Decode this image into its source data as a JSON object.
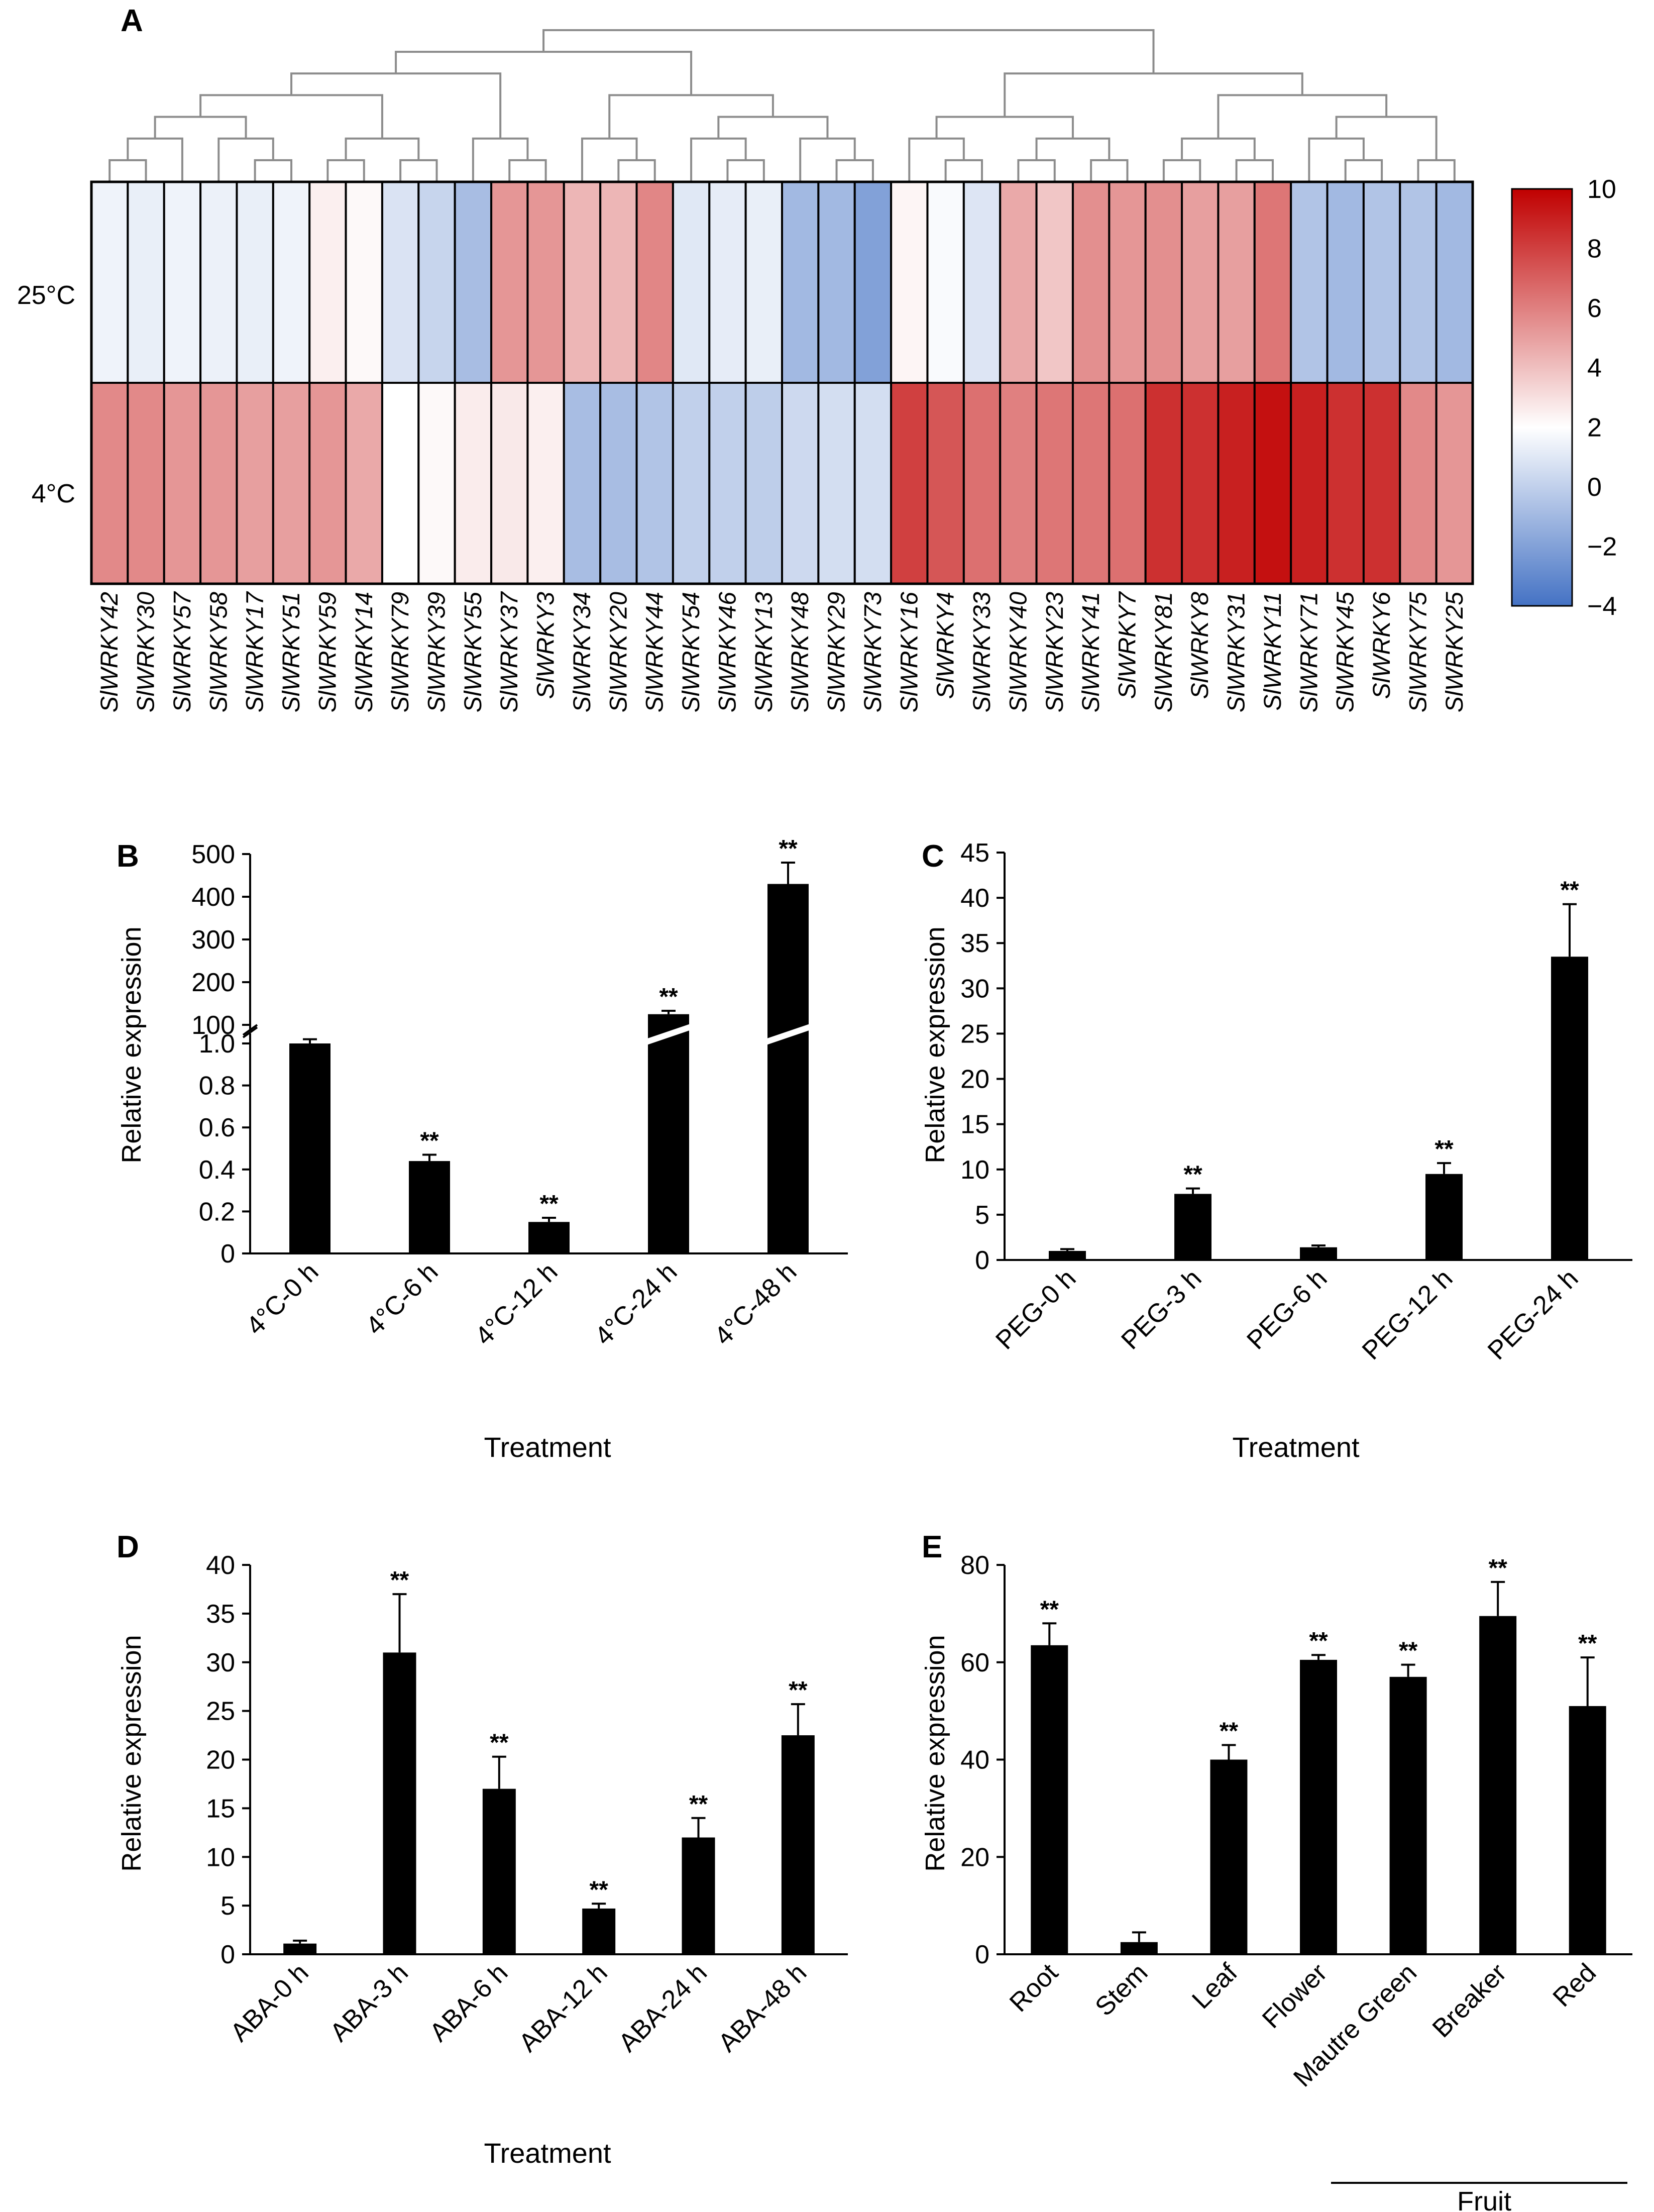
{
  "chart_data": [
    {
      "panel": "A",
      "type": "heatmap",
      "rows": [
        "25°C",
        "4°C"
      ],
      "columns": [
        "SlWRKY42",
        "SlWRKY30",
        "SlWRKY57",
        "SlWRKY58",
        "SlWRKY17",
        "SlWRKY51",
        "SlWRKY59",
        "SlWRKY14",
        "SlWRKY79",
        "SlWRKY39",
        "SlWRKY55",
        "SlWRKY37",
        "SlWRKY3",
        "SlWRKY34",
        "SlWRKY20",
        "SlWRKY44",
        "SlWRKY54",
        "SlWRKY46",
        "SlWRKY13",
        "SlWRKY48",
        "SlWRKY29",
        "SlWRKY73",
        "SlWRKY16",
        "SlWRKY4",
        "SlWRKY33",
        "SlWRKY40",
        "SlWRKY23",
        "SlWRKY41",
        "SlWRKY7",
        "SlWRKY81",
        "SlWRKY8",
        "SlWRKY31",
        "SlWRKY11",
        "SlWRKY71",
        "SlWRKY45",
        "SlWRKY6",
        "SlWRKY75",
        "SlWRKY25"
      ],
      "values": [
        [
          1.5,
          1.3,
          1.5,
          1.4,
          1.3,
          1.5,
          2.5,
          2.2,
          0.8,
          0.2,
          -0.8,
          5.3,
          5.3,
          4.3,
          4.3,
          5.8,
          1.0,
          1.2,
          1.3,
          -1.0,
          -1.0,
          -2.0,
          2.3,
          1.8,
          0.9,
          4.7,
          3.8,
          5.5,
          5.3,
          5.5,
          5.0,
          5.0,
          6.3,
          -0.5,
          -1.0,
          -0.5,
          -0.5,
          -1.0
        ],
        [
          5.7,
          5.7,
          5.3,
          5.3,
          5.0,
          5.0,
          5.3,
          4.7,
          2.0,
          2.2,
          2.6,
          2.7,
          2.5,
          -0.8,
          -0.8,
          -0.5,
          0.0,
          0.0,
          -0.1,
          0.4,
          0.6,
          0.6,
          8.0,
          7.3,
          6.5,
          6.0,
          6.3,
          6.3,
          6.5,
          8.5,
          8.5,
          9.0,
          9.5,
          9.0,
          8.5,
          8.5,
          5.7,
          5.3
        ]
      ],
      "colorbar": {
        "min": -4,
        "max": 10,
        "ticks": [
          10,
          8,
          6,
          4,
          2,
          0,
          -2,
          -4
        ],
        "tick_labels": [
          "10",
          "8",
          "6",
          "4",
          "2",
          "0",
          "−2",
          "−4"
        ],
        "low_color": "#4472c4",
        "mid_color": "#ffffff",
        "high_color": "#c00000"
      },
      "dendrogram": true
    },
    {
      "panel": "B",
      "type": "bar",
      "categories": [
        "4°C-0 h",
        "4°C-6 h",
        "4°C-12 h",
        "4°C-24 h",
        "4°C-48 h"
      ],
      "values": [
        1.0,
        0.44,
        0.15,
        125,
        430
      ],
      "errors": [
        0.02,
        0.03,
        0.02,
        8,
        50
      ],
      "significance": [
        "",
        "**",
        "**",
        "**",
        "**"
      ],
      "xlabel": "Treatment",
      "ylabel": "Relative expression",
      "broken_axis": {
        "lower_ylim": [
          0,
          1.0
        ],
        "upper_ylim": [
          100,
          500
        ],
        "lower_ticks": [
          "0",
          "0.2",
          "0.4",
          "0.6",
          "0.8",
          "1.0"
        ],
        "upper_ticks": [
          "100",
          "200",
          "300",
          "400",
          "500"
        ]
      }
    },
    {
      "panel": "C",
      "type": "bar",
      "categories": [
        "PEG-0 h",
        "PEG-3 h",
        "PEG-6 h",
        "PEG-12 h",
        "PEG-24 h"
      ],
      "values": [
        1.0,
        7.3,
        1.4,
        9.5,
        33.5
      ],
      "errors": [
        0.2,
        0.6,
        0.2,
        1.2,
        5.8
      ],
      "significance": [
        "",
        "**",
        "",
        "**",
        "**"
      ],
      "xlabel": "Treatment",
      "ylabel": "Relative expression",
      "ylim": [
        0,
        45
      ],
      "yticks": [
        "0",
        "5",
        "10",
        "15",
        "20",
        "25",
        "30",
        "35",
        "40",
        "45"
      ]
    },
    {
      "panel": "D",
      "type": "bar",
      "categories": [
        "ABA-0 h",
        "ABA-3 h",
        "ABA-6 h",
        "ABA-12 h",
        "ABA-24 h",
        "ABA-48 h"
      ],
      "values": [
        1.1,
        31.0,
        17.0,
        4.7,
        12.0,
        22.5
      ],
      "errors": [
        0.3,
        6.0,
        3.3,
        0.5,
        2.0,
        3.2
      ],
      "significance": [
        "",
        "**",
        "**",
        "**",
        "**",
        "**"
      ],
      "xlabel": "Treatment",
      "ylabel": "Relative expression",
      "ylim": [
        0,
        40
      ],
      "yticks": [
        "0",
        "5",
        "10",
        "15",
        "20",
        "25",
        "30",
        "35",
        "40"
      ]
    },
    {
      "panel": "E",
      "type": "bar",
      "categories": [
        "Root",
        "Stem",
        "Leaf",
        "Flower",
        "Mautre Green",
        "Breaker",
        "Red"
      ],
      "values": [
        63.5,
        2.5,
        40.0,
        60.5,
        57.0,
        69.5,
        51.0
      ],
      "errors": [
        4.5,
        2.0,
        3.0,
        1.0,
        2.5,
        7.0,
        10.0
      ],
      "significance": [
        "**",
        "",
        "**",
        "**",
        "**",
        "**",
        "**"
      ],
      "xlabel": "",
      "ylabel": "Relative expression",
      "ylim": [
        0,
        80
      ],
      "yticks": [
        "0",
        "20",
        "40",
        "60",
        "80"
      ],
      "group_label": "Fruit"
    }
  ]
}
